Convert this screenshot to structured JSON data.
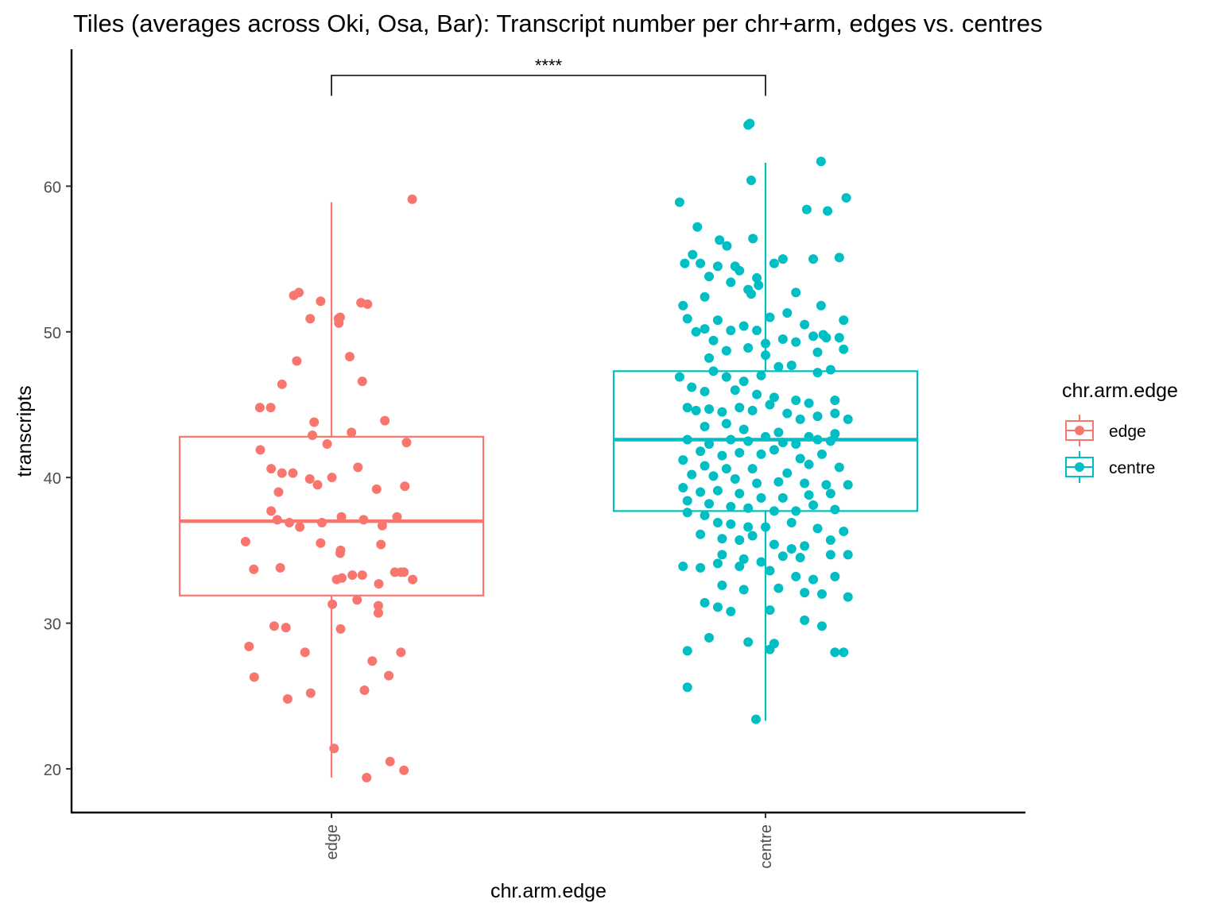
{
  "chart_data": {
    "type": "box",
    "title": "Tiles (averages across Oki, Osa, Bar): Transcript number per chr+arm, edges vs. centres",
    "xlabel": "chr.arm.edge",
    "ylabel": "transcripts",
    "categories": [
      "edge",
      "centre"
    ],
    "y_ticks": [
      20,
      30,
      40,
      50,
      60
    ],
    "ylim": [
      17,
      69.4
    ],
    "legend": {
      "title": "chr.arm.edge",
      "placement": "right",
      "entries": [
        {
          "label": "edge",
          "color": "#F8766D"
        },
        {
          "label": "centre",
          "color": "#00BFC4"
        }
      ]
    },
    "significance": {
      "label": "****",
      "between": [
        "edge",
        "centre"
      ],
      "y": 67.6
    },
    "boxes": [
      {
        "category": "edge",
        "color": "#F8766D",
        "q1": 31.9,
        "median": 37.0,
        "q3": 42.8,
        "whisker_low": 19.4,
        "whisker_high": 58.9
      },
      {
        "category": "centre",
        "color": "#00BFC4",
        "q1": 37.7,
        "median": 42.6,
        "q3": 47.3,
        "whisker_low": 23.3,
        "whisker_high": 61.6
      }
    ],
    "points": {
      "edge": [
        [
          0.186,
          59.1
        ],
        [
          -0.075,
          52.7
        ],
        [
          -0.087,
          52.5
        ],
        [
          -0.025,
          52.1
        ],
        [
          0.068,
          52.0
        ],
        [
          0.083,
          51.9
        ],
        [
          0.02,
          51.0
        ],
        [
          -0.049,
          50.9
        ],
        [
          0.016,
          50.9
        ],
        [
          0.017,
          50.6
        ],
        [
          0.042,
          48.3
        ],
        [
          -0.08,
          48.0
        ],
        [
          0.071,
          46.6
        ],
        [
          -0.114,
          46.4
        ],
        [
          -0.165,
          44.8
        ],
        [
          -0.14,
          44.8
        ],
        [
          0.123,
          43.9
        ],
        [
          -0.04,
          43.8
        ],
        [
          0.046,
          43.1
        ],
        [
          -0.044,
          42.9
        ],
        [
          -0.01,
          42.3
        ],
        [
          0.173,
          42.4
        ],
        [
          -0.164,
          41.9
        ],
        [
          0.061,
          40.7
        ],
        [
          -0.139,
          40.6
        ],
        [
          -0.114,
          40.3
        ],
        [
          -0.089,
          40.3
        ],
        [
          -0.05,
          39.9
        ],
        [
          -0.032,
          39.5
        ],
        [
          0.001,
          40.0
        ],
        [
          0.169,
          39.4
        ],
        [
          0.104,
          39.2
        ],
        [
          -0.122,
          39.0
        ],
        [
          -0.139,
          37.7
        ],
        [
          -0.125,
          37.1
        ],
        [
          -0.097,
          36.9
        ],
        [
          -0.073,
          36.6
        ],
        [
          -0.022,
          36.9
        ],
        [
          0.023,
          37.3
        ],
        [
          0.074,
          37.1
        ],
        [
          0.117,
          36.7
        ],
        [
          0.151,
          37.3
        ],
        [
          -0.198,
          35.6
        ],
        [
          -0.025,
          35.5
        ],
        [
          0.021,
          35.0
        ],
        [
          0.02,
          34.8
        ],
        [
          0.114,
          35.4
        ],
        [
          -0.179,
          33.7
        ],
        [
          -0.118,
          33.8
        ],
        [
          0.012,
          33.0
        ],
        [
          0.024,
          33.1
        ],
        [
          0.048,
          33.3
        ],
        [
          0.071,
          33.3
        ],
        [
          0.109,
          32.7
        ],
        [
          0.146,
          33.5
        ],
        [
          0.16,
          33.5
        ],
        [
          0.167,
          33.5
        ],
        [
          0.187,
          33.0
        ],
        [
          0.059,
          31.6
        ],
        [
          0.108,
          31.2
        ],
        [
          0.002,
          31.3
        ],
        [
          0.108,
          30.7
        ],
        [
          -0.132,
          29.8
        ],
        [
          -0.105,
          29.7
        ],
        [
          0.021,
          29.6
        ],
        [
          -0.19,
          28.4
        ],
        [
          -0.061,
          28.0
        ],
        [
          0.094,
          27.4
        ],
        [
          0.16,
          28.0
        ],
        [
          -0.178,
          26.3
        ],
        [
          0.132,
          26.4
        ],
        [
          -0.101,
          24.8
        ],
        [
          -0.048,
          25.2
        ],
        [
          0.076,
          25.4
        ],
        [
          0.006,
          21.4
        ],
        [
          0.135,
          20.5
        ],
        [
          0.167,
          19.9
        ],
        [
          0.081,
          19.4
        ]
      ],
      "centre": [
        [
          -0.036,
          64.3
        ],
        [
          -0.04,
          64.2
        ],
        [
          0.128,
          61.7
        ],
        [
          -0.033,
          60.4
        ],
        [
          0.186,
          59.2
        ],
        [
          -0.198,
          58.9
        ],
        [
          0.095,
          58.4
        ],
        [
          0.143,
          58.3
        ],
        [
          -0.157,
          57.2
        ],
        [
          -0.106,
          56.3
        ],
        [
          -0.029,
          56.4
        ],
        [
          -0.089,
          55.9
        ],
        [
          -0.168,
          55.3
        ],
        [
          0.04,
          55.0
        ],
        [
          0.11,
          55.0
        ],
        [
          0.17,
          55.1
        ],
        [
          -0.186,
          54.7
        ],
        [
          -0.15,
          54.7
        ],
        [
          -0.11,
          54.5
        ],
        [
          -0.07,
          54.5
        ],
        [
          -0.06,
          54.2
        ],
        [
          0.02,
          54.7
        ],
        [
          -0.02,
          53.7
        ],
        [
          -0.13,
          53.8
        ],
        [
          -0.08,
          53.4
        ],
        [
          -0.016,
          53.2
        ],
        [
          -0.04,
          52.9
        ],
        [
          -0.033,
          52.6
        ],
        [
          0.07,
          52.7
        ],
        [
          -0.14,
          52.4
        ],
        [
          -0.19,
          51.8
        ],
        [
          0.128,
          51.8
        ],
        [
          0.05,
          51.3
        ],
        [
          0.01,
          51.0
        ],
        [
          -0.18,
          50.9
        ],
        [
          -0.11,
          50.8
        ],
        [
          -0.14,
          50.2
        ],
        [
          -0.08,
          50.1
        ],
        [
          -0.05,
          50.4
        ],
        [
          -0.02,
          50.1
        ],
        [
          0.09,
          50.5
        ],
        [
          0.133,
          49.8
        ],
        [
          0.18,
          50.8
        ],
        [
          -0.16,
          50.0
        ],
        [
          -0.12,
          49.4
        ],
        [
          0.0,
          49.2
        ],
        [
          0.04,
          49.5
        ],
        [
          0.07,
          49.3
        ],
        [
          0.11,
          49.7
        ],
        [
          0.14,
          49.6
        ],
        [
          0.17,
          49.6
        ],
        [
          -0.09,
          48.7
        ],
        [
          -0.04,
          48.9
        ],
        [
          -0.13,
          48.2
        ],
        [
          0.0,
          48.4
        ],
        [
          0.06,
          47.7
        ],
        [
          0.12,
          48.6
        ],
        [
          0.18,
          48.8
        ],
        [
          -0.12,
          47.3
        ],
        [
          -0.09,
          46.9
        ],
        [
          -0.05,
          46.6
        ],
        [
          -0.01,
          47.0
        ],
        [
          0.03,
          47.6
        ],
        [
          0.12,
          47.2
        ],
        [
          0.15,
          47.4
        ],
        [
          -0.198,
          46.9
        ],
        [
          -0.17,
          46.2
        ],
        [
          -0.14,
          45.9
        ],
        [
          -0.07,
          46.0
        ],
        [
          -0.02,
          45.7
        ],
        [
          0.02,
          45.5
        ],
        [
          0.07,
          45.3
        ],
        [
          0.1,
          45.1
        ],
        [
          0.16,
          45.3
        ],
        [
          -0.18,
          44.8
        ],
        [
          -0.16,
          44.6
        ],
        [
          -0.13,
          44.7
        ],
        [
          -0.1,
          44.5
        ],
        [
          -0.06,
          44.8
        ],
        [
          -0.03,
          44.6
        ],
        [
          0.01,
          45.0
        ],
        [
          0.05,
          44.4
        ],
        [
          0.08,
          44.0
        ],
        [
          0.12,
          44.2
        ],
        [
          0.16,
          44.4
        ],
        [
          0.19,
          44.0
        ],
        [
          -0.14,
          43.5
        ],
        [
          -0.09,
          43.7
        ],
        [
          -0.05,
          43.3
        ],
        [
          0.03,
          43.1
        ],
        [
          0.1,
          42.8
        ],
        [
          0.16,
          43.0
        ],
        [
          -0.18,
          42.6
        ],
        [
          -0.13,
          42.3
        ],
        [
          -0.08,
          42.6
        ],
        [
          -0.04,
          42.5
        ],
        [
          0.0,
          42.8
        ],
        [
          0.04,
          42.4
        ],
        [
          0.07,
          42.3
        ],
        [
          0.12,
          42.6
        ],
        [
          0.15,
          42.5
        ],
        [
          -0.15,
          41.8
        ],
        [
          -0.1,
          41.5
        ],
        [
          -0.06,
          41.7
        ],
        [
          -0.01,
          41.6
        ],
        [
          0.02,
          41.9
        ],
        [
          0.08,
          41.3
        ],
        [
          0.13,
          41.6
        ],
        [
          -0.19,
          41.2
        ],
        [
          -0.14,
          40.8
        ],
        [
          -0.09,
          40.6
        ],
        [
          -0.03,
          40.6
        ],
        [
          0.05,
          40.3
        ],
        [
          0.1,
          40.9
        ],
        [
          0.17,
          40.7
        ],
        [
          -0.17,
          40.2
        ],
        [
          -0.12,
          40.1
        ],
        [
          -0.07,
          39.9
        ],
        [
          -0.02,
          39.6
        ],
        [
          0.03,
          39.7
        ],
        [
          0.09,
          39.6
        ],
        [
          0.14,
          39.5
        ],
        [
          0.19,
          39.5
        ],
        [
          -0.19,
          39.3
        ],
        [
          -0.15,
          39.0
        ],
        [
          -0.11,
          39.1
        ],
        [
          -0.06,
          38.9
        ],
        [
          -0.01,
          38.6
        ],
        [
          0.04,
          38.6
        ],
        [
          0.1,
          38.8
        ],
        [
          0.15,
          38.9
        ],
        [
          -0.18,
          38.4
        ],
        [
          -0.13,
          38.2
        ],
        [
          -0.08,
          38.0
        ],
        [
          -0.04,
          37.9
        ],
        [
          0.02,
          37.7
        ],
        [
          0.07,
          37.7
        ],
        [
          0.11,
          38.1
        ],
        [
          0.16,
          37.8
        ],
        [
          -0.18,
          37.6
        ],
        [
          -0.14,
          37.4
        ],
        [
          -0.11,
          36.9
        ],
        [
          -0.08,
          36.8
        ],
        [
          -0.04,
          36.6
        ],
        [
          0.0,
          36.6
        ],
        [
          0.06,
          36.9
        ],
        [
          0.12,
          36.5
        ],
        [
          0.18,
          36.3
        ],
        [
          -0.15,
          36.1
        ],
        [
          -0.1,
          35.8
        ],
        [
          -0.06,
          35.7
        ],
        [
          -0.03,
          36.0
        ],
        [
          0.02,
          35.4
        ],
        [
          0.06,
          35.1
        ],
        [
          0.09,
          35.3
        ],
        [
          0.15,
          35.7
        ],
        [
          -0.1,
          34.7
        ],
        [
          -0.05,
          34.4
        ],
        [
          -0.01,
          34.2
        ],
        [
          0.04,
          34.6
        ],
        [
          0.08,
          34.5
        ],
        [
          0.15,
          34.7
        ],
        [
          0.19,
          34.7
        ],
        [
          -0.19,
          33.9
        ],
        [
          -0.15,
          33.8
        ],
        [
          -0.11,
          34.1
        ],
        [
          -0.06,
          33.9
        ],
        [
          0.01,
          33.6
        ],
        [
          0.07,
          33.2
        ],
        [
          0.11,
          33.0
        ],
        [
          0.16,
          33.2
        ],
        [
          -0.1,
          32.6
        ],
        [
          -0.05,
          32.3
        ],
        [
          0.03,
          32.4
        ],
        [
          0.09,
          32.1
        ],
        [
          0.13,
          32.0
        ],
        [
          0.19,
          31.8
        ],
        [
          -0.14,
          31.4
        ],
        [
          -0.11,
          31.1
        ],
        [
          -0.08,
          30.8
        ],
        [
          0.01,
          30.9
        ],
        [
          0.09,
          30.2
        ],
        [
          0.13,
          29.8
        ],
        [
          -0.13,
          29.0
        ],
        [
          -0.04,
          28.7
        ],
        [
          0.02,
          28.6
        ],
        [
          0.01,
          28.2
        ],
        [
          -0.18,
          28.1
        ],
        [
          0.16,
          28.0
        ],
        [
          0.18,
          28.0
        ],
        [
          -0.18,
          25.6
        ],
        [
          -0.022,
          23.4
        ]
      ]
    }
  }
}
